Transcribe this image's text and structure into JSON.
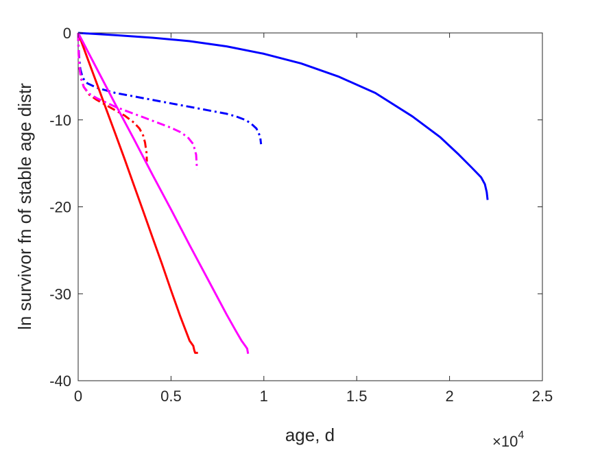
{
  "chart_data": {
    "type": "line",
    "title": "",
    "xlabel": "age, d",
    "ylabel": "ln survivor fn of stable age distr",
    "x_exponent_label": {
      "base": "×10",
      "power": "4"
    },
    "xlim": [
      0,
      25000
    ],
    "ylim": [
      -40,
      0
    ],
    "x_ticks": [
      0,
      5000,
      10000,
      15000,
      20000,
      25000
    ],
    "x_tick_labels": [
      "0",
      "0.5",
      "1",
      "1.5",
      "2",
      "2.5"
    ],
    "y_ticks": [
      0,
      -10,
      -20,
      -30,
      -40
    ],
    "y_tick_labels": [
      "0",
      "-10",
      "-20",
      "-30",
      "-40"
    ],
    "grid": false,
    "series": [
      {
        "color": "#0000ff",
        "dash": "solid",
        "x": [
          0,
          2000,
          4000,
          6000,
          8000,
          10000,
          12000,
          14000,
          16000,
          18000,
          19500,
          20500,
          21200,
          21700,
          21900,
          22000,
          22050
        ],
        "y": [
          0,
          -0.25,
          -0.55,
          -0.95,
          -1.55,
          -2.4,
          -3.5,
          -5.0,
          -6.9,
          -9.6,
          -12.0,
          -14.0,
          -15.5,
          -16.6,
          -17.4,
          -18.3,
          -19.2
        ]
      },
      {
        "color": "#0000ff",
        "dash": "dashdot",
        "x": [
          0,
          20,
          60,
          120,
          250,
          500,
          1000,
          2000,
          3000,
          4000,
          5000,
          6000,
          7000,
          8000,
          8500,
          9000,
          9300,
          9600,
          9800,
          9850
        ],
        "y": [
          0,
          -1.5,
          -3.0,
          -4.2,
          -5.2,
          -5.8,
          -6.3,
          -6.9,
          -7.3,
          -7.7,
          -8.1,
          -8.5,
          -8.9,
          -9.3,
          -9.6,
          -10.0,
          -10.4,
          -11.0,
          -11.9,
          -12.8
        ]
      },
      {
        "color": "#ff0000",
        "dash": "solid",
        "x": [
          0,
          500,
          1000,
          1500,
          2000,
          2500,
          3000,
          3500,
          4000,
          4500,
          5000,
          5500,
          6000,
          6200,
          6250,
          6300,
          6450
        ],
        "y": [
          0,
          -2.9,
          -5.8,
          -8.7,
          -11.6,
          -14.5,
          -17.5,
          -20.5,
          -23.5,
          -26.5,
          -29.6,
          -32.6,
          -35.4,
          -36.0,
          -36.5,
          -36.8,
          -36.8
        ]
      },
      {
        "color": "#ff0000",
        "dash": "dashdot",
        "x": [
          0,
          20,
          60,
          150,
          300,
          600,
          1000,
          1500,
          2000,
          2500,
          3000,
          3300,
          3500,
          3600,
          3680,
          3700
        ],
        "y": [
          0,
          -2.0,
          -3.8,
          -5.2,
          -6.2,
          -7.1,
          -7.7,
          -8.3,
          -8.9,
          -9.5,
          -10.3,
          -11.0,
          -11.8,
          -12.6,
          -13.8,
          -14.8
        ]
      },
      {
        "color": "#ff00ff",
        "dash": "solid",
        "x": [
          0,
          1000,
          2000,
          3000,
          4000,
          5000,
          6000,
          7000,
          8000,
          8500,
          8800,
          9000,
          9100,
          9150
        ],
        "y": [
          0,
          -4.1,
          -8.2,
          -12.2,
          -16.3,
          -20.3,
          -24.4,
          -28.4,
          -32.4,
          -34.3,
          -35.4,
          -36.0,
          -36.3,
          -36.9
        ]
      },
      {
        "color": "#ff00ff",
        "dash": "dashdot",
        "x": [
          0,
          20,
          60,
          150,
          300,
          600,
          1000,
          1500,
          2000,
          2500,
          3000,
          3500,
          4000,
          4500,
          5000,
          5500,
          5900,
          6200,
          6350,
          6400
        ],
        "y": [
          0,
          -2.0,
          -3.8,
          -5.2,
          -6.2,
          -7.0,
          -7.5,
          -8.0,
          -8.5,
          -8.9,
          -9.3,
          -9.7,
          -10.1,
          -10.5,
          -10.9,
          -11.4,
          -12.0,
          -12.8,
          -14.0,
          -15.7
        ]
      }
    ]
  }
}
